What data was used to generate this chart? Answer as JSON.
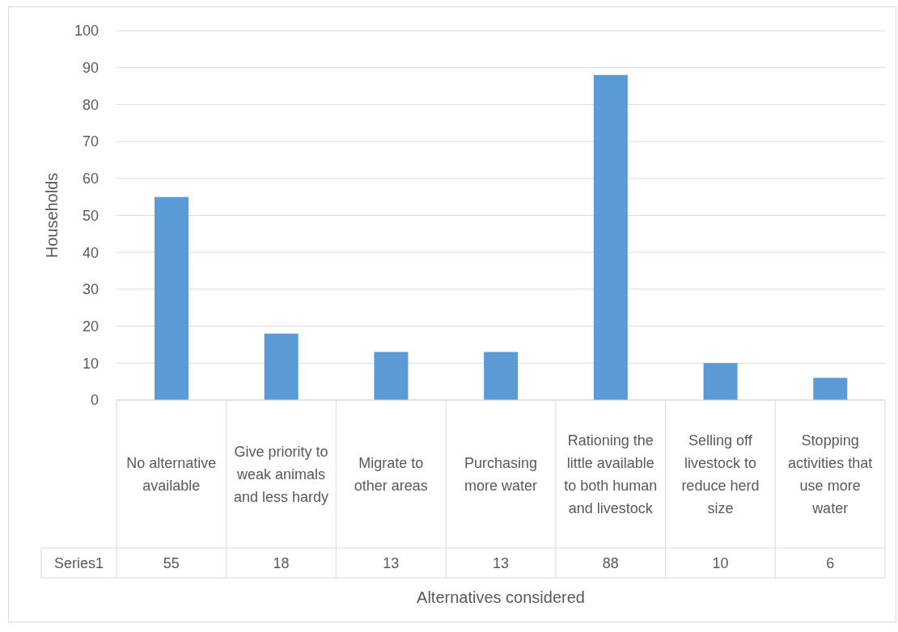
{
  "chart_data": {
    "type": "bar",
    "xlabel": "Alternatives considered",
    "ylabel": "Households",
    "categories": [
      "No alternative available",
      "Give priority to weak animals and less hardy",
      "Migrate to other areas",
      "Purchasing more water",
      "Rationing the little available to both human and livestock",
      "Selling off livestock to reduce herd size",
      "Stopping activities that use more water"
    ],
    "series": [
      {
        "name": "Series1",
        "color": "#5b9bd5",
        "values": [
          55,
          18,
          13,
          13,
          88,
          10,
          6
        ]
      }
    ],
    "ylim": [
      0,
      100
    ],
    "yticks": [
      0,
      10,
      20,
      30,
      40,
      50,
      60,
      70,
      80,
      90,
      100
    ],
    "grid": "y",
    "data_labels": true
  }
}
